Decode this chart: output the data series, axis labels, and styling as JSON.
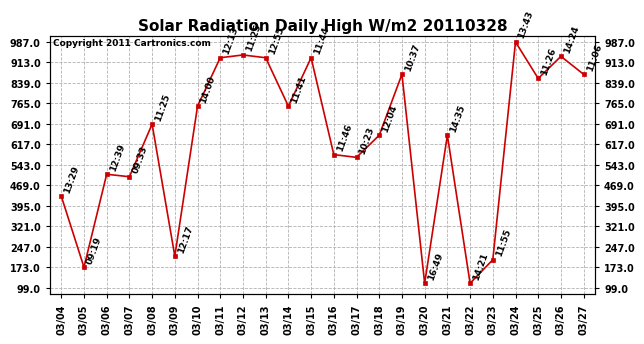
{
  "title": "Solar Radiation Daily High W/m2 20110328",
  "copyright": "Copyright 2011 Cartronics.com",
  "dates": [
    "03/04",
    "03/05",
    "03/06",
    "03/07",
    "03/08",
    "03/09",
    "03/10",
    "03/11",
    "03/12",
    "03/13",
    "03/14",
    "03/15",
    "03/16",
    "03/17",
    "03/18",
    "03/19",
    "03/20",
    "03/21",
    "03/22",
    "03/23",
    "03/24",
    "03/25",
    "03/26",
    "03/27"
  ],
  "values": [
    430,
    173,
    509,
    500,
    690,
    213,
    755,
    930,
    940,
    930,
    755,
    930,
    580,
    570,
    650,
    870,
    115,
    650,
    115,
    200,
    987,
    855,
    935,
    870
  ],
  "times": [
    "13:29",
    "09:19",
    "12:39",
    "09:33",
    "11:25",
    "12:17",
    "14:00",
    "12:13",
    "11:25",
    "12:55",
    "11:41",
    "11:44",
    "11:46",
    "10:23",
    "12:04",
    "10:37",
    "16:49",
    "14:35",
    "14:21",
    "11:55",
    "13:43",
    "11:26",
    "14:24",
    "11:06"
  ],
  "yticks": [
    99.0,
    173.0,
    247.0,
    321.0,
    395.0,
    469.0,
    543.0,
    617.0,
    691.0,
    765.0,
    839.0,
    913.0,
    987.0
  ],
  "line_color": "#cc0000",
  "marker_color": "#cc0000",
  "bg_color": "#ffffff",
  "plot_bg_color": "#ffffff",
  "grid_color": "#aaaaaa",
  "title_fontsize": 11,
  "tick_fontsize": 7,
  "annot_fontsize": 6.5,
  "ymin": 75,
  "ymax": 1010
}
